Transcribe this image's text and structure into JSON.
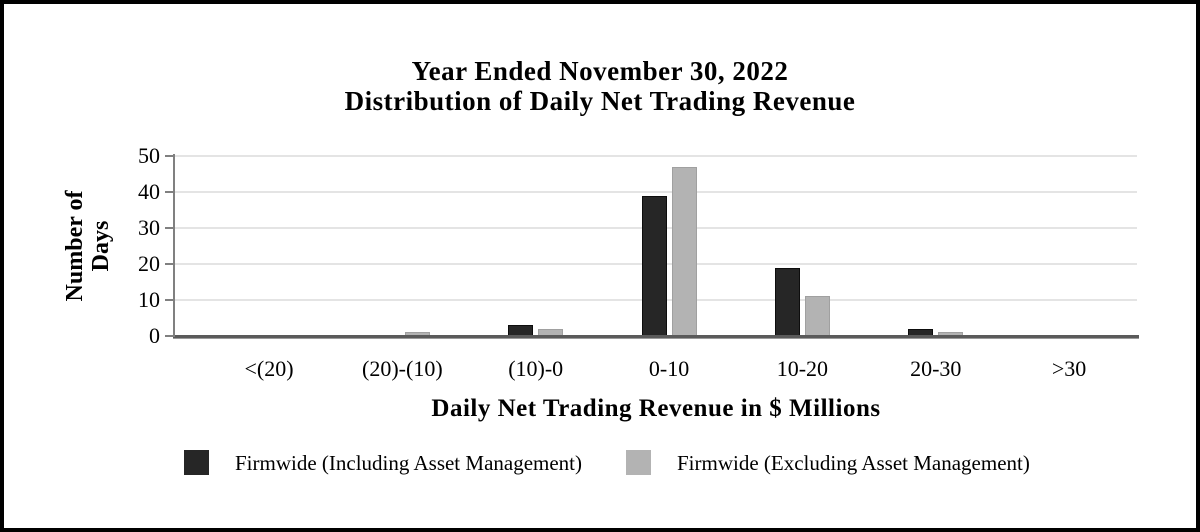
{
  "chart_data": {
    "type": "bar",
    "title_line1": "Year Ended November 30, 2022",
    "title_line2": "Distribution of Daily Net Trading Revenue",
    "categories": [
      "<(20)",
      "(20)-(10)",
      "(10)-0",
      "0-10",
      "10-20",
      "20-30",
      ">30"
    ],
    "series": [
      {
        "name": "Firmwide (Including Asset Management)",
        "color": "#262626",
        "border": "#0d0d0d",
        "values": [
          0,
          0,
          3,
          39,
          19,
          2,
          0
        ]
      },
      {
        "name": "Firmwide (Excluding Asset Management)",
        "color": "#b3b3b3",
        "border": "#a0a0a0",
        "values": [
          0,
          1,
          2,
          47,
          11,
          1,
          0
        ]
      }
    ],
    "xlabel": "Daily Net Trading Revenue in $ Millions",
    "ylabel": "Number of Days",
    "ylabel_lines": [
      "Number of",
      "Days"
    ],
    "ylim": [
      0,
      50
    ],
    "yticks": [
      0,
      10,
      20,
      30,
      40,
      50
    ],
    "grid": true,
    "legend_position": "bottom",
    "axis_color": "#808080",
    "x_axis_color": "#5a5a5a",
    "gridline_color": "#e4e4e4"
  }
}
